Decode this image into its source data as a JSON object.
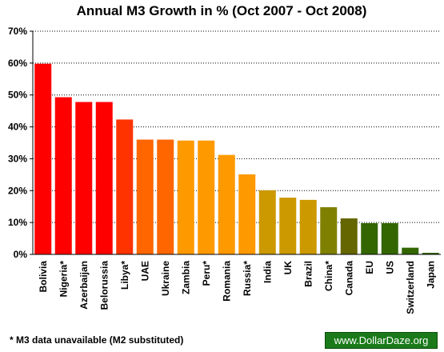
{
  "chart_data": {
    "type": "bar",
    "title": "Annual M3 Growth in % (Oct 2007 - Oct 2008)",
    "categories": [
      "Bolivia",
      "Nigeria*",
      "Azerbaijan",
      "Belorussia",
      "Libya*",
      "UAE",
      "Ukraine",
      "Zambia",
      "Peru*",
      "Romania",
      "Russia*",
      "India",
      "UK",
      "Brazil",
      "China*",
      "Canada",
      "EU",
      "US",
      "Switzerland",
      "Japan"
    ],
    "values": [
      59.8,
      49.3,
      47.8,
      47.8,
      42.3,
      36.0,
      36.0,
      35.7,
      35.7,
      31.2,
      25.1,
      20.1,
      17.8,
      17.1,
      14.8,
      11.3,
      9.8,
      9.8,
      2.1,
      0.5
    ],
    "colors": [
      "#ff0000",
      "#ff0000",
      "#ff0000",
      "#ff0000",
      "#ff3300",
      "#ff6600",
      "#ff6600",
      "#ff9900",
      "#ff9900",
      "#ff9900",
      "#ff9900",
      "#cc9900",
      "#cc9900",
      "#cc9900",
      "#808000",
      "#666600",
      "#336600",
      "#336600",
      "#336600",
      "#336600"
    ],
    "ylim": [
      0,
      70
    ],
    "yticks": [
      "0%",
      "10%",
      "20%",
      "30%",
      "40%",
      "50%",
      "60%",
      "70%"
    ],
    "grid": true,
    "xlabel": "",
    "ylabel": ""
  },
  "footnote": "* M3 data unavailable (M2 substituted)",
  "watermark": "www.DollarDaze.org"
}
